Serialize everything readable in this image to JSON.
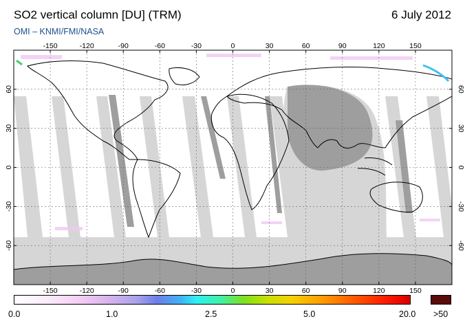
{
  "header": {
    "title": "SO2 vertical column [DU] (TRM)",
    "date": "6 July 2012",
    "subtitle": "OMI  –  KNMI/FMI/NASA"
  },
  "map": {
    "lon_ticks_top": [
      "-150",
      "-120",
      "-90",
      "-60",
      "-30",
      "0",
      "30",
      "60",
      "90",
      "120",
      "150"
    ],
    "lon_ticks_bottom": [
      "-150",
      "-120",
      "-90",
      "-60",
      "-30",
      "0",
      "30",
      "60",
      "90",
      "120",
      "150"
    ],
    "lat_ticks": [
      "60",
      "30",
      "0",
      "-30",
      "-60"
    ],
    "lon_range": [
      -180,
      180
    ],
    "lat_range": [
      -90,
      90
    ],
    "colors": {
      "no_data_light": "#d6d6d6",
      "no_data_dark": "#9a9a9a",
      "land_outline": "#000000",
      "background": "#ffffff"
    }
  },
  "colorbar": {
    "labels": [
      "0.0",
      "1.0",
      "2.5",
      "5.0",
      "20.0"
    ],
    "over_label": ">50",
    "over_color": "#5a0a0a"
  }
}
